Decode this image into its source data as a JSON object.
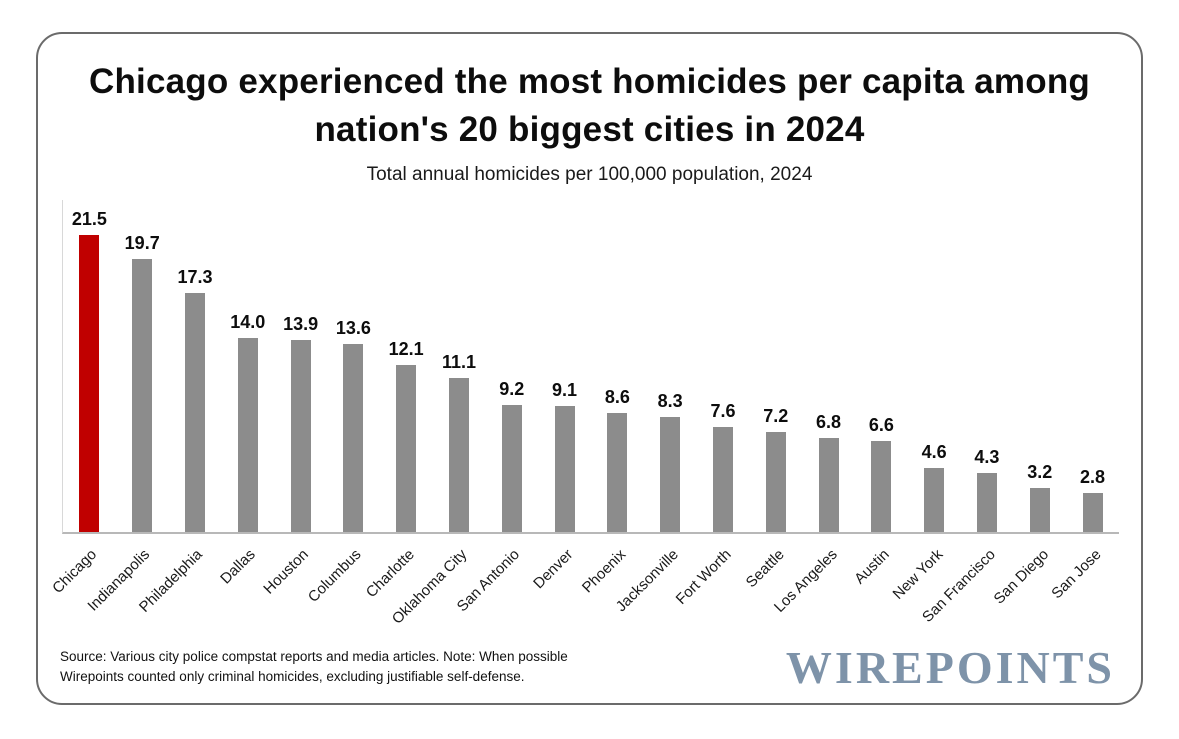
{
  "colors": {
    "bar": "#8c8c8c",
    "highlight": "#c00000",
    "axis": "#b8b8b8",
    "logo": "#7e93a9"
  },
  "chart_data": {
    "type": "bar",
    "title": "Chicago experienced the most homicides per capita among nation's 20 biggest cities in 2024",
    "subtitle": "Total annual homicides per 100,000 population, 2024",
    "categories": [
      "Chicago",
      "Indianapolis",
      "Philadelphia",
      "Dallas",
      "Houston",
      "Columbus",
      "Charlotte",
      "Oklahoma City",
      "San Antonio",
      "Denver",
      "Phoenix",
      "Jacksonville",
      "Fort Worth",
      "Seattle",
      "Los Angeles",
      "Austin",
      "New York",
      "San Francisco",
      "San Diego",
      "San Jose"
    ],
    "values": [
      21.5,
      19.7,
      17.3,
      14.0,
      13.9,
      13.6,
      12.1,
      11.1,
      9.2,
      9.1,
      8.6,
      8.3,
      7.6,
      7.2,
      6.8,
      6.6,
      4.6,
      4.3,
      3.2,
      2.8
    ],
    "highlight_index": 0,
    "xlabel": "",
    "ylabel": "",
    "ylim": [
      0,
      24
    ],
    "grid": false,
    "legend": "none",
    "value_labels": true
  },
  "footer": {
    "source_lines": [
      "Source: Various city police compstat reports and media articles. Note: When possible",
      "Wirepoints counted only criminal homicides, excluding justifiable self-defense."
    ],
    "logo_text": "WIREPOINTS"
  }
}
